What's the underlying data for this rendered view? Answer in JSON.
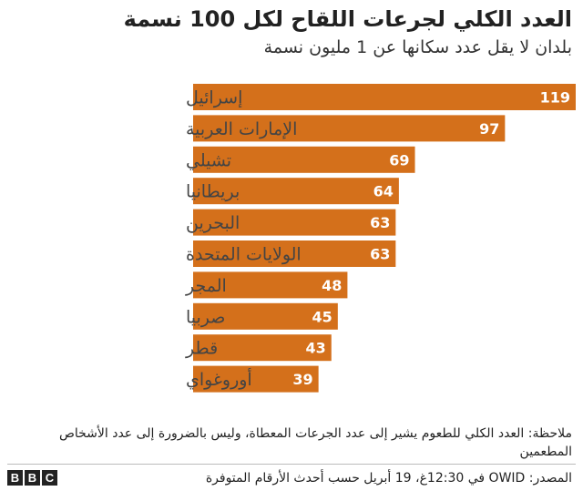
{
  "chart_data": {
    "type": "bar",
    "orientation": "horizontal",
    "title": "العدد الكلي لجرعات اللقاح لكل 100 نسمة",
    "subtitle": "بلدان لا يقل عدد سكانها عن 1 مليون نسمة",
    "categories": [
      "إسرائيل",
      "الإمارات العربية",
      "تشيلي",
      "بريطانيا",
      "البحرين",
      "الولايات المتحدة",
      "المجر",
      "صربيا",
      "قطر",
      "أوروغواي"
    ],
    "values": [
      119,
      97,
      69,
      64,
      63,
      63,
      48,
      45,
      43,
      39
    ],
    "data_labels": true,
    "grid": false,
    "xlim": [
      0,
      119
    ],
    "colors": {
      "bar": "#D4701B",
      "bar_label": "#ffffff",
      "category_label": "#444444"
    }
  },
  "note": "ملاحظة: العدد الكلي للطعوم يشير إلى عدد الجرعات المعطاة، وليس بالضرورة إلى عدد الأشخاص المطعمين",
  "source": "المصدر: OWID في 12:30غ، 19 أبريل حسب أحدث الأرقام المتوفرة",
  "logo": {
    "letters": [
      "B",
      "B",
      "C"
    ]
  }
}
